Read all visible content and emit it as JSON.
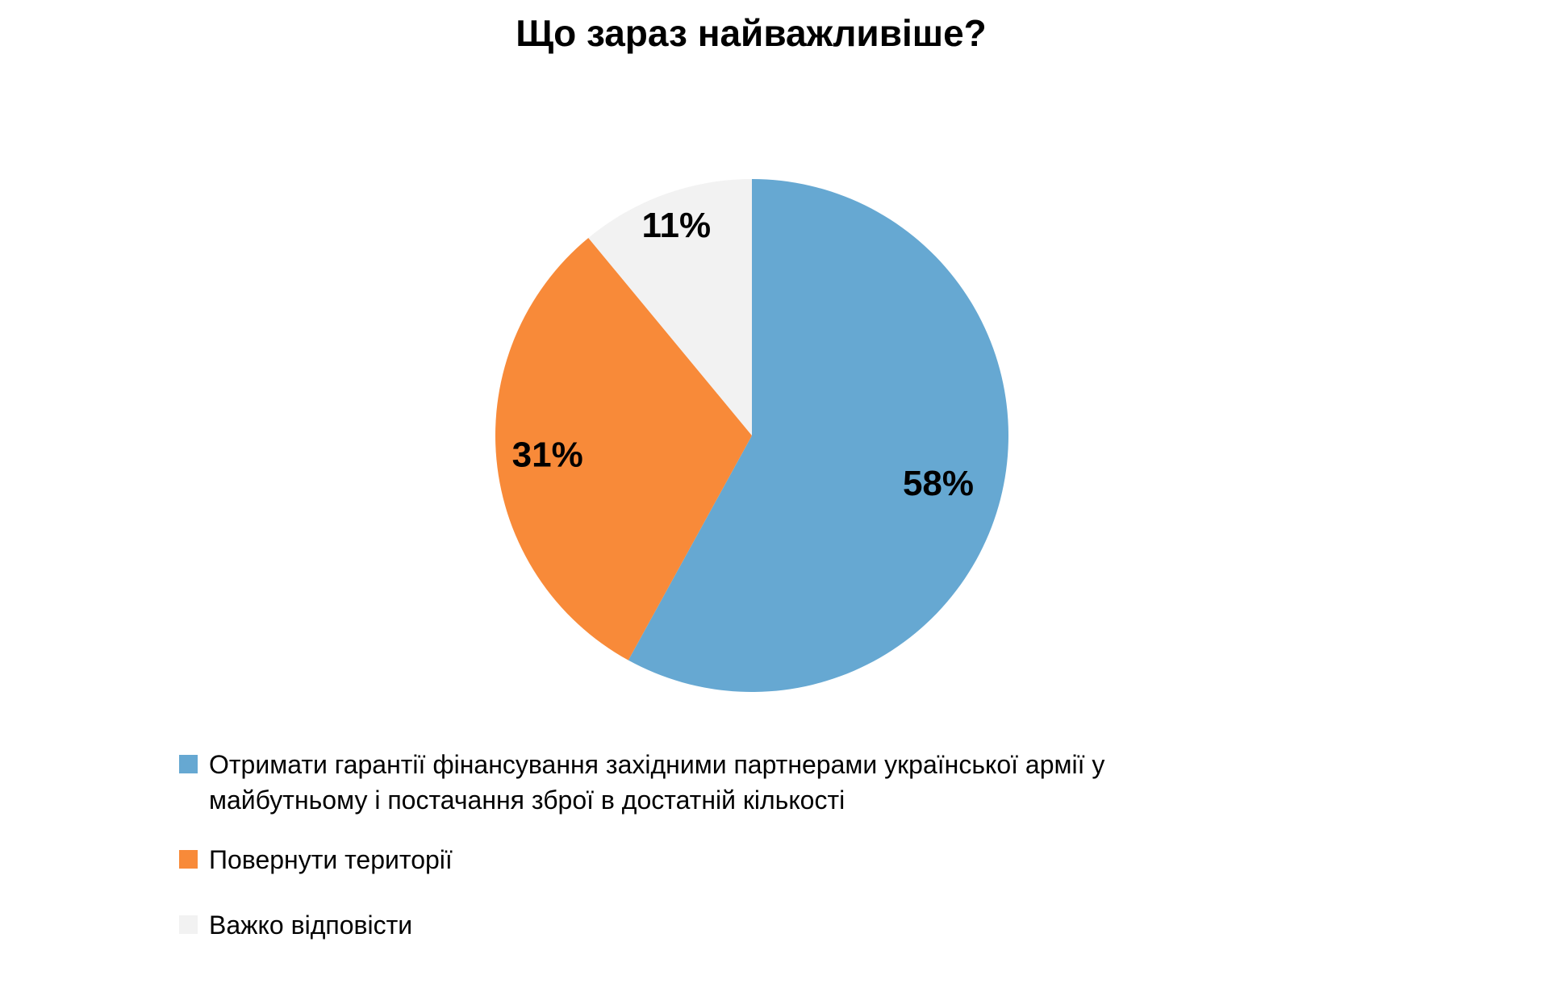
{
  "chart": {
    "title": "Що зараз найважливіше?"
  },
  "chart_data": {
    "type": "pie",
    "title": "Що зараз найважливіше?",
    "direction": "clockwise",
    "start_angle_deg": 0,
    "legend_position": "bottom-left",
    "grid": false,
    "background_color": "#ffffff",
    "label_color": "#000000",
    "label_radius_fractions": [
      0.75,
      0.8,
      0.87
    ],
    "slices": [
      {
        "label": "Отримати гарантії фінансування західними партнерами української армії у майбутньому і постачання зброї в достатній кількості",
        "value": 58,
        "display": "58%",
        "color": "#66A8D2"
      },
      {
        "label": "Повернути території",
        "value": 31,
        "display": "31%",
        "color": "#F88A39"
      },
      {
        "label": "Важко відповісти",
        "value": 11,
        "display": "11%",
        "color": "#F2F2F2"
      }
    ]
  }
}
